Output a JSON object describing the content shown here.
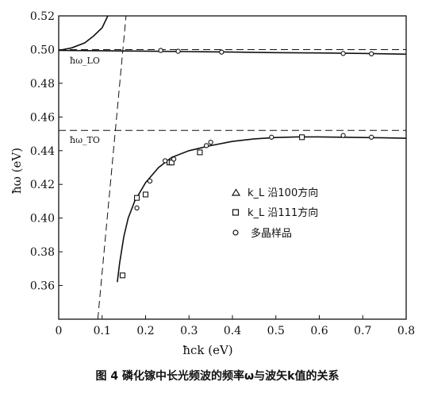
{
  "chart_data": {
    "type": "scatter",
    "caption": "图 4   磷化镓中长光频波的频率ω与波矢k值的关系",
    "xlabel": "ħck (eV)",
    "ylabel": "ħω (eV)",
    "xlim": [
      0,
      0.8
    ],
    "ylim": [
      0.34,
      0.52
    ],
    "xticks": [
      "0",
      "0.1",
      "0.2",
      "0.3",
      "0.4",
      "0.5",
      "0.6",
      "0.7",
      "0.8"
    ],
    "yticks": [
      "0.36",
      "0.38",
      "0.40",
      "0.42",
      "0.44",
      "0.46",
      "0.48",
      "0.50",
      "0.52"
    ],
    "xtick_values": [
      0,
      0.1,
      0.2,
      0.3,
      0.4,
      0.5,
      0.6,
      0.7,
      0.8
    ],
    "ytick_values": [
      0.36,
      0.38,
      0.4,
      0.42,
      0.44,
      0.46,
      0.48,
      0.5,
      0.52
    ],
    "grid": false,
    "legend_position": "center-right",
    "annotations": {
      "omega_lo": "ħω_LO",
      "omega_to": "ħω_TO"
    },
    "reference_lines": {
      "omega_lo_y": 0.5,
      "omega_to_y": 0.452,
      "light_line_x": [
        0.09,
        0.155
      ]
    },
    "curves": {
      "upper_branch": [
        [
          0,
          0.4995
        ],
        [
          0.1,
          0.4993
        ],
        [
          0.2,
          0.4991
        ],
        [
          0.3,
          0.4988
        ],
        [
          0.4,
          0.4985
        ],
        [
          0.5,
          0.4982
        ],
        [
          0.6,
          0.498
        ],
        [
          0.7,
          0.4977
        ],
        [
          0.8,
          0.4973
        ]
      ],
      "upper_rising": [
        [
          0.0,
          0.4995
        ],
        [
          0.03,
          0.501
        ],
        [
          0.06,
          0.504
        ],
        [
          0.08,
          0.508
        ],
        [
          0.1,
          0.513
        ],
        [
          0.113,
          0.52
        ]
      ],
      "lower_branch": [
        [
          0.135,
          0.362
        ],
        [
          0.14,
          0.373
        ],
        [
          0.15,
          0.389
        ],
        [
          0.16,
          0.4
        ],
        [
          0.175,
          0.41
        ],
        [
          0.2,
          0.421
        ],
        [
          0.23,
          0.43
        ],
        [
          0.26,
          0.436
        ],
        [
          0.3,
          0.44
        ],
        [
          0.35,
          0.443
        ],
        [
          0.4,
          0.4455
        ],
        [
          0.45,
          0.447
        ],
        [
          0.5,
          0.4478
        ],
        [
          0.55,
          0.4482
        ],
        [
          0.6,
          0.4482
        ],
        [
          0.65,
          0.448
        ],
        [
          0.7,
          0.4478
        ],
        [
          0.75,
          0.4476
        ],
        [
          0.8,
          0.4474
        ]
      ]
    },
    "series": [
      {
        "name": "k_L 沿100方向",
        "marker": "triangle",
        "x": [],
        "y": []
      },
      {
        "name": "k_L 沿111方向",
        "marker": "square",
        "x": [
          0.147,
          0.18,
          0.2,
          0.255,
          0.26,
          0.325,
          0.56
        ],
        "y": [
          0.366,
          0.412,
          0.414,
          0.433,
          0.433,
          0.439,
          0.448
        ]
      },
      {
        "name": "多晶样品",
        "marker": "circle",
        "x": [
          0.18,
          0.21,
          0.245,
          0.265,
          0.34,
          0.35,
          0.49,
          0.655,
          0.72,
          0.235,
          0.275,
          0.375,
          0.655,
          0.72
        ],
        "y": [
          0.406,
          0.422,
          0.434,
          0.435,
          0.443,
          0.445,
          0.448,
          0.449,
          0.448,
          0.4995,
          0.499,
          0.4985,
          0.4977,
          0.4975
        ]
      }
    ]
  }
}
